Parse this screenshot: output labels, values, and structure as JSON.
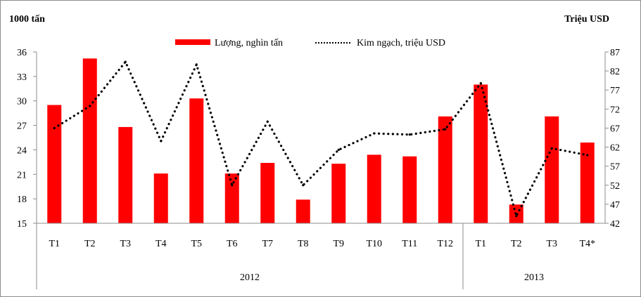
{
  "chart_data": {
    "type": "bar",
    "left_axis_unit": "1000 tấn",
    "right_axis_unit": "Triệu USD",
    "categories": [
      "T1",
      "T2",
      "T3",
      "T4",
      "T5",
      "T6",
      "T7",
      "T8",
      "T9",
      "T10",
      "T11",
      "T12",
      "T1",
      "T2",
      "T3",
      "T4*"
    ],
    "groups": [
      {
        "label": "2012",
        "count": 12
      },
      {
        "label": "2013",
        "count": 4
      }
    ],
    "y_left": {
      "min": 15,
      "max": 36,
      "ticks": [
        "15",
        "18",
        "21",
        "24",
        "27",
        "30",
        "33",
        "36"
      ]
    },
    "y_right": {
      "min": 42,
      "max": 87,
      "ticks": [
        "42",
        "47",
        "52",
        "57",
        "62",
        "67",
        "72",
        "77",
        "82",
        "87"
      ]
    },
    "series": [
      {
        "name": "Lượng, nghìn tấn",
        "kind": "bar",
        "axis": "left",
        "color": "#ff0000",
        "values": [
          29.5,
          35.2,
          26.8,
          21.1,
          30.3,
          21.1,
          22.4,
          17.9,
          22.3,
          23.4,
          23.2,
          28.1,
          32.0,
          17.3,
          28.1,
          24.9
        ]
      },
      {
        "name": "Kim ngạch, triệu USD",
        "kind": "line",
        "style": "dotted",
        "axis": "right",
        "color": "#000000",
        "values": [
          67,
          72.8,
          84.4,
          63.6,
          83.7,
          52.0,
          68.7,
          52.0,
          61.3,
          65.6,
          65.3,
          66.7,
          78.8,
          43.9,
          61.7,
          59.9
        ]
      }
    ],
    "grid": false,
    "legend": "top"
  }
}
